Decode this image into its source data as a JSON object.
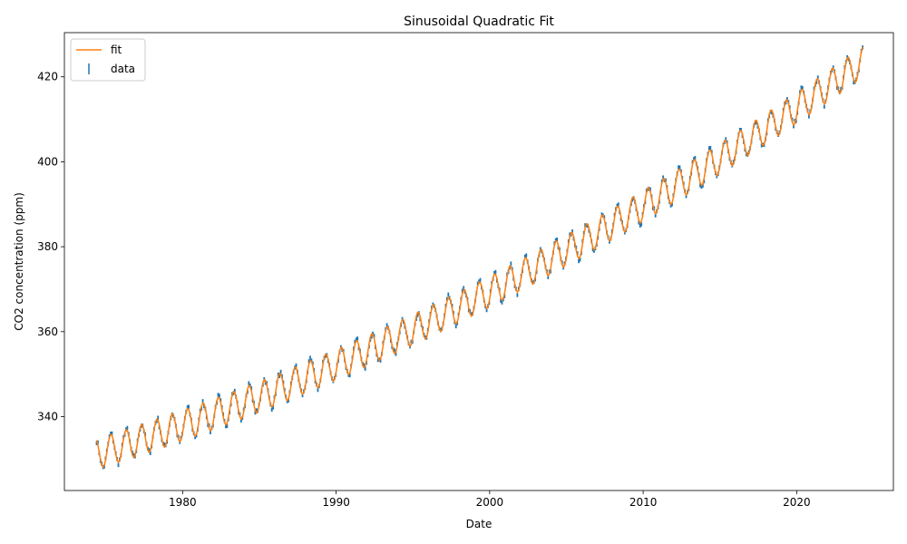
{
  "chart_data": {
    "type": "line",
    "title": "Sinusoidal Quadratic Fit",
    "xlabel": "Date",
    "ylabel": "CO2 concentration (ppm)",
    "xlim": [
      1972.3,
      2026.3
    ],
    "ylim": [
      322.6,
      430.4
    ],
    "x_ticks": [
      1980,
      1990,
      2000,
      2010,
      2020
    ],
    "y_ticks": [
      340,
      360,
      380,
      400,
      420
    ],
    "grid": false,
    "legend": {
      "position": "top-left",
      "entries": [
        "fit",
        "data"
      ]
    },
    "fit_model": {
      "form": "sinusoidal quadratic",
      "x_start": 1974.4,
      "x_end": 2024.3,
      "step": 0.0833,
      "anchor_points": [
        {
          "x": 1974.5,
          "y": 331.3
        },
        {
          "x": 1999.5,
          "y": 368.5
        },
        {
          "x": 2024.3,
          "y": 423.5
        }
      ],
      "seasonal_amplitude": 3.6,
      "peak_fraction_of_year": 0.33
    },
    "series": [
      {
        "name": "fit",
        "kind": "line",
        "color": "#ff7f0e"
      },
      {
        "name": "data",
        "kind": "errorbar-points",
        "color": "#1f77b4"
      }
    ]
  }
}
